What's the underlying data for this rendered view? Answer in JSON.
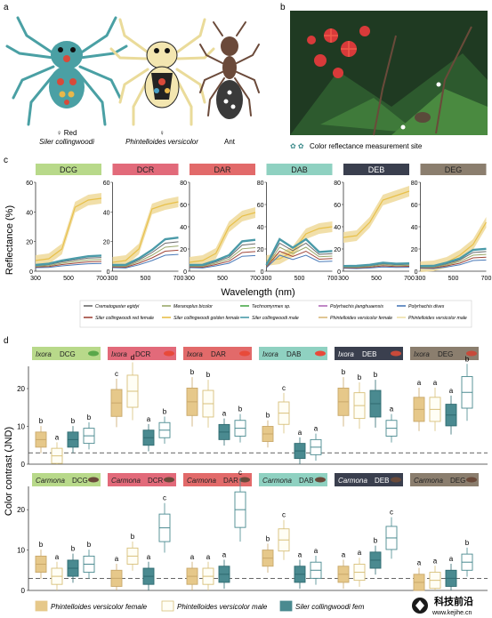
{
  "panel_letters": [
    "a",
    "b",
    "c",
    "d"
  ],
  "panel_a": {
    "labels": [
      {
        "line1": "♀ Red",
        "line2": "Siler collingwoodi"
      },
      {
        "line1": "♀",
        "line2": "Phintelloides versicolor"
      },
      {
        "line1": "",
        "line2": "Ant"
      }
    ]
  },
  "panel_b": {
    "legend_text": "Color reflectance measurement site",
    "legend_symbols": "✿ ✿"
  },
  "panel_c": {
    "y_label": "Reflectance (%)",
    "x_label": "Wavelength (nm)",
    "y_ticks": [
      "0",
      "20",
      "40",
      "60",
      "80"
    ],
    "x_ticks": [
      "300",
      "500",
      "700"
    ],
    "charts": [
      {
        "title": "DCG",
        "color": "#b8d98a",
        "ymax": 60
      },
      {
        "title": "DCR",
        "color": "#e26a7a",
        "ymax": 60
      },
      {
        "title": "DAR",
        "color": "#e26a6a",
        "ymax": 80
      },
      {
        "title": "DAB",
        "color": "#8fd1c1",
        "ymax": 80
      },
      {
        "title": "DEB",
        "color": "#3a3f4e",
        "ymax": 80
      },
      {
        "title": "DEG",
        "color": "#8b7e6e",
        "ymax": 80
      }
    ],
    "legend": [
      {
        "name": "Crematogaster egidyi",
        "color": "#6b6b6b"
      },
      {
        "name": "Meranoplus bicolor",
        "color": "#9aa86a"
      },
      {
        "name": "Technomyrmex sp.",
        "color": "#4aa84a"
      },
      {
        "name": "Polyrhachis jianghuaensis",
        "color": "#b06ab8"
      },
      {
        "name": "Polyrhachis dives",
        "color": "#4a7ab8"
      },
      {
        "name": "Siler collingwoodi red female",
        "color": "#a0463a"
      },
      {
        "name": "Siler collingwoodi golden female",
        "color": "#e8c04a"
      },
      {
        "name": "Siler collingwoodi male",
        "color": "#4a9aa8"
      },
      {
        "name": "Phintelloides versicolor female",
        "color": "#d8b87a"
      },
      {
        "name": "Phintelloides versicolor male",
        "color": "#efe0a8"
      }
    ]
  },
  "panel_d": {
    "y_label": "Color contrast (JND)",
    "y_ticks": [
      "0",
      "10",
      "20"
    ],
    "rows": [
      {
        "plant": "Ixora",
        "groups": [
          {
            "code": "DCG",
            "color": "#b8d98a",
            "letters": [
              "b",
              "a",
              "b",
              "b"
            ],
            "medians": [
              6.5,
              2.2,
              6.5,
              7.5
            ]
          },
          {
            "code": "DCR",
            "color": "#e26a7a",
            "letters": [
              "c",
              "d",
              "a",
              "b"
            ],
            "medians": [
              16.2,
              19.3,
              7.0,
              9.0
            ]
          },
          {
            "code": "DAR",
            "color": "#e26a6a",
            "letters": [
              "b",
              "b",
              "a",
              "b"
            ],
            "medians": [
              16.5,
              16.0,
              8.5,
              9.5
            ]
          },
          {
            "code": "DAB",
            "color": "#8fd1c1",
            "letters": [
              "b",
              "c",
              "a",
              "a"
            ],
            "medians": [
              8.0,
              13.5,
              3.5,
              4.5
            ]
          },
          {
            "code": "DEB",
            "color": "#3a3f4e",
            "letters": [
              "b",
              "b",
              "b",
              "a"
            ],
            "medians": [
              16.5,
              15.5,
              16.0,
              9.5
            ]
          },
          {
            "code": "DEG",
            "color": "#8b7e6e",
            "letters": [
              "a",
              "a",
              "a",
              "b"
            ],
            "medians": [
              14.5,
              14.5,
              13.0,
              19.0
            ]
          }
        ]
      },
      {
        "plant": "Carmona",
        "groups": [
          {
            "code": "DCG",
            "color": "#b8d98a",
            "letters": [
              "b",
              "a",
              "b",
              "b"
            ],
            "medians": [
              6.5,
              3.5,
              5.5,
              6.5
            ]
          },
          {
            "code": "DCR",
            "color": "#e26a7a",
            "letters": [
              "a",
              "b",
              "a",
              "c"
            ],
            "medians": [
              3.0,
              8.5,
              3.5,
              15.5
            ]
          },
          {
            "code": "DAR",
            "color": "#e26a6a",
            "letters": [
              "a",
              "a",
              "a",
              "c"
            ],
            "medians": [
              3.5,
              3.5,
              4.0,
              20.0
            ]
          },
          {
            "code": "DAB",
            "color": "#8fd1c1",
            "letters": [
              "b",
              "c",
              "a",
              "a"
            ],
            "medians": [
              8.0,
              12.5,
              4.0,
              5.0
            ]
          },
          {
            "code": "DEB",
            "color": "#3a3f4e",
            "letters": [
              "a",
              "a",
              "b",
              "c"
            ],
            "medians": [
              4.0,
              4.5,
              7.5,
              13.0
            ]
          },
          {
            "code": "DEG",
            "color": "#8b7e6e",
            "letters": [
              "a",
              "a",
              "a",
              "b"
            ],
            "medians": [
              2.0,
              2.5,
              3.0,
              7.0
            ]
          }
        ]
      }
    ],
    "legend": [
      {
        "name": "Phintelloides versicolor female",
        "color": "#e6c88a"
      },
      {
        "name": "Phintelloides versicolor male",
        "color": "#fffef5"
      },
      {
        "name": "Siler collingwoodi fem",
        "color": "#4a8a90"
      }
    ]
  },
  "watermark": {
    "title": "科技前沿",
    "url": "www.kejihe.cn"
  }
}
